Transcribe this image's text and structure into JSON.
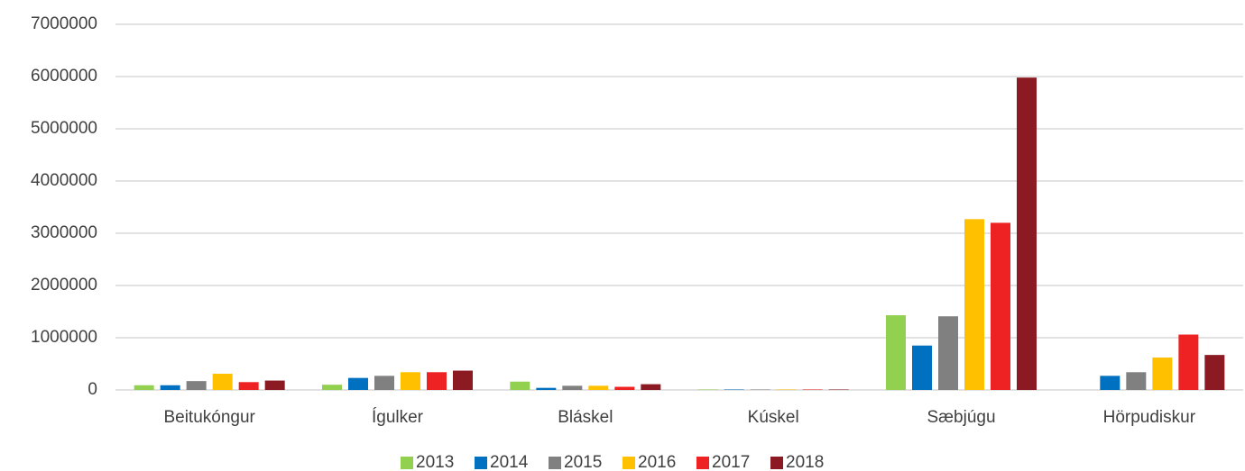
{
  "chart_data": {
    "type": "bar",
    "categories": [
      "Beitukóngur",
      "Ígulker",
      "Bláskel",
      "Kúskel",
      "Sæbjúgu",
      "Hörpudiskur"
    ],
    "series": [
      {
        "name": "2013",
        "color": "#92d050",
        "values": [
          90000,
          100000,
          160000,
          8000,
          1430000,
          null
        ]
      },
      {
        "name": "2014",
        "color": "#0070c0",
        "values": [
          90000,
          230000,
          40000,
          8000,
          850000,
          270000
        ]
      },
      {
        "name": "2015",
        "color": "#808080",
        "values": [
          170000,
          270000,
          80000,
          8000,
          1410000,
          340000
        ]
      },
      {
        "name": "2016",
        "color": "#ffc000",
        "values": [
          310000,
          340000,
          80000,
          8000,
          3270000,
          620000
        ]
      },
      {
        "name": "2017",
        "color": "#ee2222",
        "values": [
          150000,
          340000,
          60000,
          8000,
          3200000,
          1060000
        ]
      },
      {
        "name": "2018",
        "color": "#8b1a22",
        "values": [
          180000,
          370000,
          110000,
          8000,
          5980000,
          670000
        ]
      }
    ],
    "ylim": [
      0,
      7000000
    ],
    "yticks": [
      0,
      1000000,
      2000000,
      3000000,
      4000000,
      5000000,
      6000000,
      7000000
    ],
    "grid": true,
    "legend": "bottom"
  }
}
